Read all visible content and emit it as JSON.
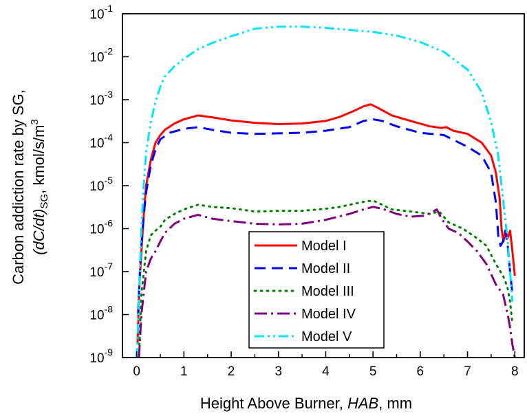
{
  "chart_data": {
    "type": "line",
    "xlabel": {
      "pre": "Height Above Burner, ",
      "italic": "HAB",
      "post": ", mm"
    },
    "ylabel": {
      "line1": "Carbon addiction rate by SG,",
      "line2": {
        "paren": "(dC/dt)",
        "sub": "SG",
        "unit": ", kmol/s/m",
        "sup": "3"
      }
    },
    "xlim": [
      -0.3,
      8.2
    ],
    "ylim_log10": [
      -9,
      -1
    ],
    "y_scale": "log",
    "x_ticks": [
      "0",
      "1",
      "2",
      "3",
      "4",
      "5",
      "6",
      "7",
      "8"
    ],
    "y_ticks": [
      {
        "base": "10",
        "exp": "-9"
      },
      {
        "base": "10",
        "exp": "-8"
      },
      {
        "base": "10",
        "exp": "-7"
      },
      {
        "base": "10",
        "exp": "-6"
      },
      {
        "base": "10",
        "exp": "-5"
      },
      {
        "base": "10",
        "exp": "-4"
      },
      {
        "base": "10",
        "exp": "-3"
      },
      {
        "base": "10",
        "exp": "-2"
      },
      {
        "base": "10",
        "exp": "-1"
      }
    ],
    "legend_position": "bottom-center",
    "series": [
      {
        "name": "Model I",
        "color": "#ff0000",
        "dash": "",
        "width": 3,
        "x": [
          0.02,
          0.05,
          0.1,
          0.15,
          0.2,
          0.3,
          0.4,
          0.5,
          0.6,
          0.8,
          1.0,
          1.3,
          1.6,
          2.0,
          2.5,
          3.0,
          3.5,
          4.0,
          4.3,
          4.6,
          4.8,
          4.95,
          5.1,
          5.4,
          5.8,
          6.2,
          6.45,
          6.55,
          6.7,
          7.0,
          7.3,
          7.5,
          7.6,
          7.68,
          7.72,
          7.76,
          7.8,
          7.85,
          7.9,
          7.95,
          8.0
        ],
        "y": [
          2e-09,
          3e-08,
          3e-07,
          2e-06,
          1e-05,
          4e-05,
          0.0001,
          0.00015,
          0.0002,
          0.00028,
          0.00035,
          0.00043,
          0.00039,
          0.00033,
          0.00029,
          0.00027,
          0.00028,
          0.00032,
          0.0004,
          0.00055,
          0.0007,
          0.00078,
          0.00065,
          0.00043,
          0.00032,
          0.00024,
          0.00022,
          0.00023,
          0.00019,
          0.00016,
          0.0001,
          5e-05,
          2e-05,
          5e-06,
          1e-06,
          5e-07,
          9e-07,
          6e-07,
          9e-07,
          3e-07,
          8e-08
        ]
      },
      {
        "name": "Model II",
        "color": "#0000ff",
        "dash": "16,9",
        "width": 3,
        "x": [
          0.03,
          0.08,
          0.15,
          0.2,
          0.3,
          0.4,
          0.5,
          0.7,
          1.0,
          1.3,
          1.6,
          2.0,
          2.5,
          3.0,
          3.5,
          4.0,
          4.5,
          4.8,
          5.0,
          5.2,
          5.5,
          6.0,
          6.5,
          7.0,
          7.3,
          7.5,
          7.6,
          7.65,
          7.7,
          7.75,
          7.8,
          7.85,
          7.9,
          7.95
        ],
        "y": [
          1e-08,
          2e-07,
          2e-06,
          7e-06,
          3e-05,
          7e-05,
          0.00012,
          0.00017,
          0.00021,
          0.00023,
          0.0002,
          0.00017,
          0.00016,
          0.000165,
          0.00017,
          0.00019,
          0.00023,
          0.00032,
          0.00035,
          0.00032,
          0.00024,
          0.00017,
          0.00015,
          8e-05,
          5e-05,
          2e-05,
          4e-06,
          7e-07,
          4e-07,
          5e-07,
          9e-07,
          4e-07,
          1e-07,
          3e-08
        ]
      },
      {
        "name": "Model III",
        "color": "#008000",
        "dash": "2,7",
        "width": 3,
        "x": [
          0.05,
          0.1,
          0.2,
          0.3,
          0.4,
          0.5,
          0.6,
          0.8,
          1.0,
          1.3,
          1.6,
          2.0,
          2.5,
          3.0,
          3.5,
          4.0,
          4.3,
          4.6,
          4.85,
          5.0,
          5.15,
          5.4,
          5.8,
          6.2,
          6.4,
          6.6,
          6.9,
          7.2,
          7.4,
          7.6,
          7.75,
          7.8,
          7.85,
          7.9,
          7.95
        ],
        "y": [
          1e-09,
          3e-08,
          3e-07,
          7e-07,
          9e-07,
          1.1e-06,
          1.6e-06,
          2.2e-06,
          2.8e-06,
          3.6e-06,
          3.2e-06,
          3e-06,
          2.5e-06,
          2.6e-06,
          2.6e-06,
          2.9e-06,
          3.2e-06,
          3.8e-06,
          4.3e-06,
          4.5e-06,
          3.8e-06,
          2.8e-06,
          2.5e-06,
          2.2e-06,
          2.5e-06,
          1.4e-06,
          1e-06,
          6e-07,
          4e-07,
          1.5e-07,
          8e-08,
          6e-08,
          4e-08,
          2e-08,
          6e-09
        ]
      },
      {
        "name": "Model IV",
        "color": "#800080",
        "dash": "18,6,3,6",
        "width": 3,
        "x": [
          0.05,
          0.1,
          0.2,
          0.3,
          0.4,
          0.5,
          0.6,
          0.8,
          1.0,
          1.3,
          1.6,
          2.0,
          2.5,
          3.0,
          3.5,
          4.0,
          4.5,
          4.8,
          5.0,
          5.2,
          5.5,
          5.8,
          6.1,
          6.35,
          6.45,
          6.6,
          6.8,
          7.0,
          7.2,
          7.4,
          7.6,
          7.75,
          7.85,
          7.9,
          7.95,
          8.0
        ],
        "y": [
          1e-09,
          1e-08,
          1e-07,
          2e-07,
          3e-07,
          5e-07,
          8e-07,
          1.3e-06,
          1.7e-06,
          2.1e-06,
          1.7e-06,
          1.5e-06,
          1.3e-06,
          1.25e-06,
          1.3e-06,
          1.6e-06,
          2.2e-06,
          2.8e-06,
          3.2e-06,
          2.9e-06,
          2.2e-06,
          1.9e-06,
          2e-06,
          2.8e-06,
          1.7e-06,
          1e-06,
          8e-07,
          5e-07,
          3e-07,
          1.5e-07,
          5e-08,
          3e-08,
          1e-08,
          5e-09,
          2e-09,
          1e-09
        ]
      },
      {
        "name": "Model V",
        "color": "#00e5ff",
        "dash": "14,5,3,5,3,5",
        "width": 3,
        "x": [
          0.0,
          0.05,
          0.1,
          0.15,
          0.2,
          0.3,
          0.4,
          0.5,
          0.6,
          0.8,
          1.0,
          1.3,
          1.6,
          2.0,
          2.5,
          3.0,
          3.5,
          4.0,
          4.5,
          5.0,
          5.5,
          6.0,
          6.5,
          7.0,
          7.3,
          7.5,
          7.65,
          7.75,
          7.85,
          7.9,
          7.95
        ],
        "y": [
          1e-09,
          2e-08,
          1e-06,
          1e-05,
          6e-05,
          0.0003,
          0.0009,
          0.002,
          0.0035,
          0.006,
          0.009,
          0.015,
          0.021,
          0.03,
          0.045,
          0.05,
          0.05,
          0.047,
          0.042,
          0.038,
          0.031,
          0.022,
          0.013,
          0.005,
          0.0015,
          0.0003,
          5e-05,
          5e-06,
          5e-07,
          1e-07,
          2e-08
        ]
      }
    ]
  }
}
